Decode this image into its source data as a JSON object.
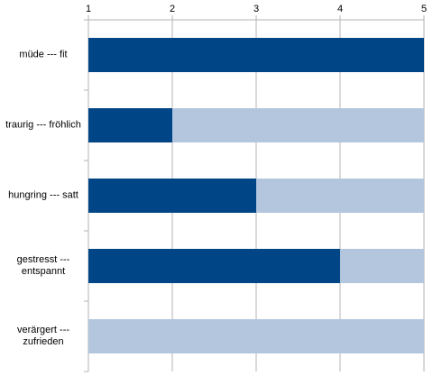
{
  "chart_data": {
    "type": "barh",
    "categories": [
      "müde --- fit",
      "traurig --- fröhlich",
      "hungring --- satt",
      "gestresst --- entspannt",
      "verärgert --- zufrieden"
    ],
    "values": [
      5,
      2,
      3,
      4,
      1
    ],
    "color": "#004586",
    "track_color": "#b3c6de",
    "xlim": [
      1,
      5
    ],
    "xticks": [
      1,
      2,
      3,
      4,
      5
    ],
    "grid": true
  }
}
